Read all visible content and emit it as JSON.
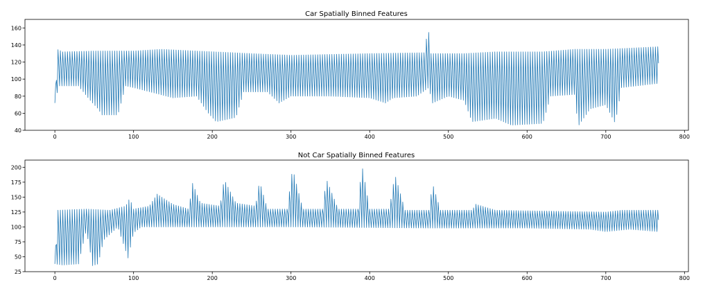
{
  "chart_data": [
    {
      "type": "line",
      "title": "Car Spatially Binned Features",
      "xlabel": "",
      "ylabel": "",
      "xlim": [
        -38,
        805
      ],
      "ylim": [
        40,
        170
      ],
      "xticks": [
        0,
        100,
        200,
        300,
        400,
        500,
        600,
        700,
        800
      ],
      "yticks": [
        40,
        60,
        80,
        100,
        120,
        140,
        160
      ],
      "grid": false,
      "color": "#1f77b4",
      "series": [
        {
          "x_start": 0,
          "x_end": 767,
          "oscillation_period": 3,
          "description_values": "Pixel intensity per feature index oscillating between an upper envelope (~128-138) and a lower envelope (~45-95)",
          "upper_envelope": [
            [
              0,
              72
            ],
            [
              3,
              135
            ],
            [
              10,
              132
            ],
            [
              50,
              133
            ],
            [
              100,
              133
            ],
            [
              135,
              135
            ],
            [
              180,
              133
            ],
            [
              250,
              130
            ],
            [
              300,
              128
            ],
            [
              400,
              130
            ],
            [
              470,
              131
            ],
            [
              474,
              163
            ],
            [
              478,
              130
            ],
            [
              520,
              130
            ],
            [
              560,
              132
            ],
            [
              620,
              132
            ],
            [
              660,
              135
            ],
            [
              700,
              135
            ],
            [
              767,
              138
            ]
          ],
          "lower_envelope": [
            [
              0,
              72
            ],
            [
              5,
              92
            ],
            [
              30,
              92
            ],
            [
              45,
              75
            ],
            [
              55,
              65
            ],
            [
              60,
              58
            ],
            [
              80,
              58
            ],
            [
              90,
              92
            ],
            [
              100,
              90
            ],
            [
              150,
              78
            ],
            [
              180,
              80
            ],
            [
              195,
              60
            ],
            [
              205,
              50
            ],
            [
              230,
              55
            ],
            [
              240,
              85
            ],
            [
              270,
              85
            ],
            [
              285,
              72
            ],
            [
              300,
              80
            ],
            [
              350,
              80
            ],
            [
              400,
              78
            ],
            [
              420,
              72
            ],
            [
              430,
              78
            ],
            [
              460,
              80
            ],
            [
              475,
              90
            ],
            [
              480,
              72
            ],
            [
              500,
              80
            ],
            [
              520,
              75
            ],
            [
              530,
              50
            ],
            [
              560,
              54
            ],
            [
              580,
              46
            ],
            [
              620,
              48
            ],
            [
              630,
              80
            ],
            [
              660,
              82
            ],
            [
              665,
              45
            ],
            [
              680,
              65
            ],
            [
              700,
              70
            ],
            [
              712,
              48
            ],
            [
              720,
              90
            ],
            [
              767,
              95
            ]
          ]
        }
      ]
    },
    {
      "type": "line",
      "title": "Not Car Spatially Binned Features",
      "xlabel": "",
      "ylabel": "",
      "xlim": [
        -38,
        805
      ],
      "ylim": [
        25,
        212
      ],
      "xticks": [
        0,
        100,
        200,
        300,
        400,
        500,
        600,
        700,
        800
      ],
      "yticks": [
        25,
        50,
        75,
        100,
        125,
        150,
        175,
        200
      ],
      "grid": false,
      "color": "#1f77b4",
      "series": [
        {
          "x_start": 0,
          "x_end": 767,
          "oscillation_period": 3,
          "description_values": "Pixel intensity per feature index oscillating between an upper envelope (~125-205) and a lower envelope (~35-100)",
          "upper_envelope": [
            [
              0,
              38
            ],
            [
              3,
              128
            ],
            [
              40,
              130
            ],
            [
              70,
              128
            ],
            [
              90,
              135
            ],
            [
              95,
              148
            ],
            [
              100,
              130
            ],
            [
              120,
              135
            ],
            [
              130,
              155
            ],
            [
              150,
              138
            ],
            [
              170,
              130
            ],
            [
              175,
              173
            ],
            [
              185,
              140
            ],
            [
              210,
              135
            ],
            [
              215,
              180
            ],
            [
              230,
              140
            ],
            [
              255,
              135
            ],
            [
              260,
              177
            ],
            [
              270,
              130
            ],
            [
              295,
              130
            ],
            [
              302,
              198
            ],
            [
              315,
              130
            ],
            [
              340,
              130
            ],
            [
              345,
              180
            ],
            [
              360,
              130
            ],
            [
              385,
              130
            ],
            [
              390,
              205
            ],
            [
              400,
              130
            ],
            [
              425,
              130
            ],
            [
              432,
              188
            ],
            [
              445,
              128
            ],
            [
              475,
              128
            ],
            [
              480,
              172
            ],
            [
              490,
              128
            ],
            [
              530,
              128
            ],
            [
              535,
              138
            ],
            [
              560,
              128
            ],
            [
              700,
              125
            ],
            [
              720,
              128
            ],
            [
              767,
              128
            ]
          ],
          "lower_envelope": [
            [
              0,
              38
            ],
            [
              10,
              36
            ],
            [
              30,
              38
            ],
            [
              40,
              95
            ],
            [
              48,
              35
            ],
            [
              55,
              38
            ],
            [
              62,
              78
            ],
            [
              80,
              100
            ],
            [
              93,
              48
            ],
            [
              100,
              90
            ],
            [
              110,
              100
            ],
            [
              300,
              100
            ],
            [
              480,
              98
            ],
            [
              500,
              98
            ],
            [
              600,
              98
            ],
            [
              680,
              96
            ],
            [
              700,
              92
            ],
            [
              730,
              96
            ],
            [
              767,
              92
            ]
          ]
        }
      ]
    }
  ]
}
